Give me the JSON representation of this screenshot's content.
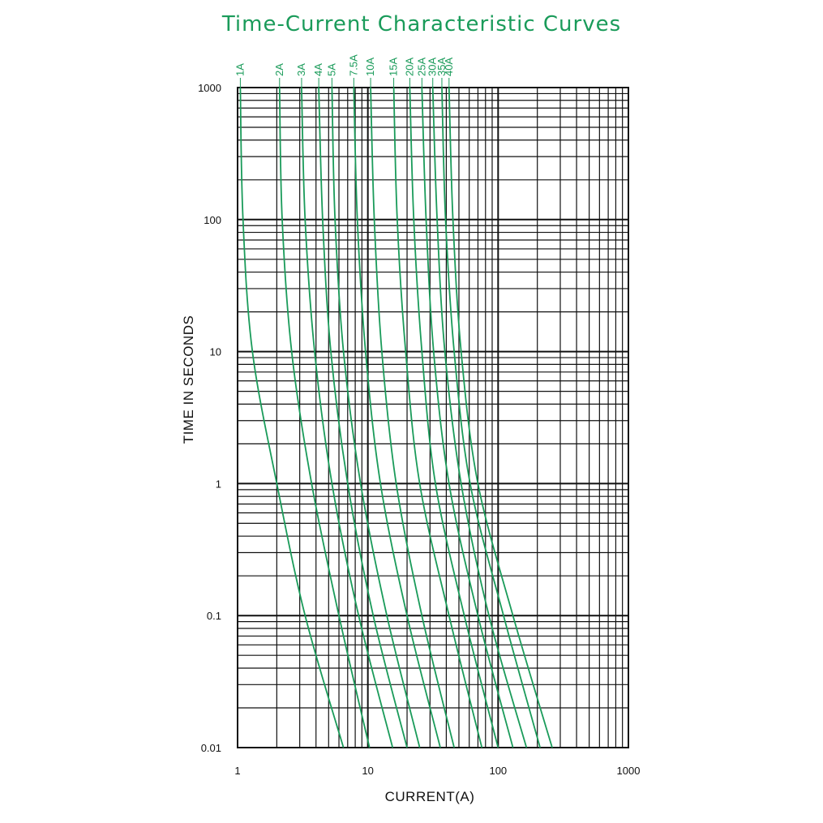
{
  "chart_data": {
    "type": "line",
    "title": "Time-Current Characteristic Curves",
    "xlabel": "CURRENT(A)",
    "ylabel": "TIME IN SECONDS",
    "x_scale": "log",
    "y_scale": "log",
    "xlim": [
      1,
      1000
    ],
    "ylim": [
      0.01,
      1000
    ],
    "x_ticks": [
      "1",
      "10",
      "100",
      "1000"
    ],
    "y_ticks": [
      "0.01",
      "0.1",
      "1",
      "10",
      "100",
      "1000"
    ],
    "grid": true,
    "curve_color": "#1a9b5a",
    "series": [
      {
        "name": "1A",
        "points": [
          [
            1.05,
            1000
          ],
          [
            1.1,
            100
          ],
          [
            1.3,
            10
          ],
          [
            2.0,
            1
          ],
          [
            3.3,
            0.1
          ],
          [
            6.5,
            0.01
          ]
        ]
      },
      {
        "name": "2A",
        "points": [
          [
            2.1,
            1000
          ],
          [
            2.2,
            100
          ],
          [
            2.6,
            10
          ],
          [
            3.7,
            1
          ],
          [
            6.0,
            0.1
          ],
          [
            10.3,
            0.01
          ]
        ]
      },
      {
        "name": "3A",
        "points": [
          [
            3.1,
            1000
          ],
          [
            3.3,
            100
          ],
          [
            3.9,
            10
          ],
          [
            5.3,
            1
          ],
          [
            8.5,
            0.1
          ],
          [
            15.5,
            0.01
          ]
        ]
      },
      {
        "name": "4A",
        "points": [
          [
            4.2,
            1000
          ],
          [
            4.5,
            100
          ],
          [
            5.2,
            10
          ],
          [
            7.0,
            1
          ],
          [
            11.0,
            0.1
          ],
          [
            20,
            0.01
          ]
        ]
      },
      {
        "name": "5A",
        "points": [
          [
            5.3,
            1000
          ],
          [
            5.6,
            100
          ],
          [
            6.5,
            10
          ],
          [
            8.8,
            1
          ],
          [
            14.0,
            0.1
          ],
          [
            25,
            0.01
          ]
        ]
      },
      {
        "name": "7.5A",
        "points": [
          [
            7.8,
            1000
          ],
          [
            8.3,
            100
          ],
          [
            9.6,
            10
          ],
          [
            12.5,
            1
          ],
          [
            20,
            0.1
          ],
          [
            36,
            0.01
          ]
        ]
      },
      {
        "name": "10A",
        "points": [
          [
            10.5,
            1000
          ],
          [
            11.2,
            100
          ],
          [
            12.8,
            10
          ],
          [
            16.5,
            1
          ],
          [
            26,
            0.1
          ],
          [
            46,
            0.01
          ]
        ]
      },
      {
        "name": "15A",
        "points": [
          [
            15.8,
            1000
          ],
          [
            16.8,
            100
          ],
          [
            19.5,
            10
          ],
          [
            25,
            1
          ],
          [
            42,
            0.1
          ],
          [
            75,
            0.01
          ]
        ]
      },
      {
        "name": "20A",
        "points": [
          [
            21,
            1000
          ],
          [
            22.5,
            100
          ],
          [
            26,
            10
          ],
          [
            33,
            1
          ],
          [
            55,
            0.1
          ],
          [
            100,
            0.01
          ]
        ]
      },
      {
        "name": "25A",
        "points": [
          [
            26,
            1000
          ],
          [
            28,
            100
          ],
          [
            32,
            10
          ],
          [
            42,
            1
          ],
          [
            70,
            0.1
          ],
          [
            130,
            0.01
          ]
        ]
      },
      {
        "name": "30A",
        "points": [
          [
            31.5,
            1000
          ],
          [
            34,
            100
          ],
          [
            39,
            10
          ],
          [
            52,
            1
          ],
          [
            85,
            0.1
          ],
          [
            165,
            0.01
          ]
        ]
      },
      {
        "name": "35A",
        "points": [
          [
            37,
            1000
          ],
          [
            39.5,
            100
          ],
          [
            46,
            10
          ],
          [
            61,
            1
          ],
          [
            110,
            0.1
          ],
          [
            210,
            0.01
          ]
        ]
      },
      {
        "name": "40A",
        "points": [
          [
            42,
            1000
          ],
          [
            45,
            100
          ],
          [
            52,
            10
          ],
          [
            70,
            1
          ],
          [
            130,
            0.1
          ],
          [
            260,
            0.01
          ]
        ]
      }
    ]
  }
}
